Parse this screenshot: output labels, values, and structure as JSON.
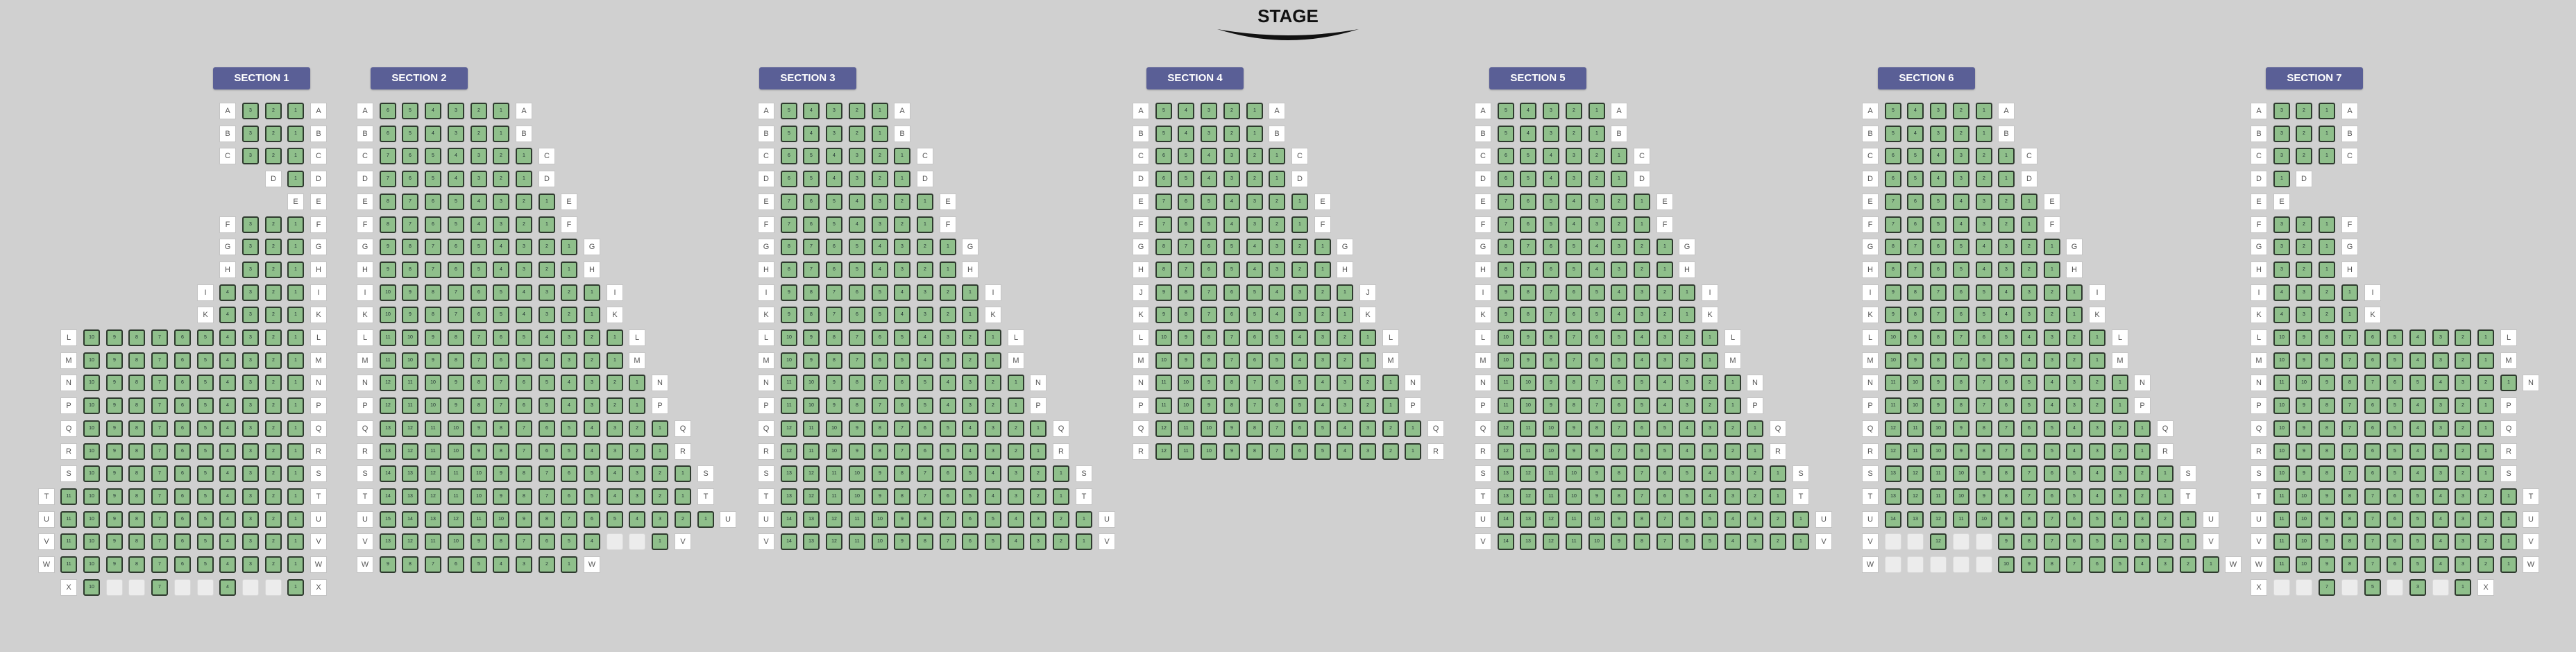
{
  "stage": {
    "title": "STAGE"
  },
  "colors": {
    "background": "#d0d0d0",
    "section_button": "#5a5f96",
    "seat_available": "#8fbf8b",
    "seat_border": "#2e3a2e",
    "seat_unavailable": "#ececec",
    "row_label_bg": "#ffffff"
  },
  "sections": [
    {
      "name": "SECTION 1",
      "rows": [
        {
          "label": "A",
          "seats": "3"
        },
        {
          "label": "B",
          "seats": "3"
        },
        {
          "label": "C",
          "seats": "3"
        },
        {
          "label": "D",
          "seats": "1"
        },
        {
          "label": "E",
          "seats": ""
        },
        {
          "label": "F",
          "seats": "3"
        },
        {
          "label": "G",
          "seats": "3"
        },
        {
          "label": "H",
          "seats": "3"
        },
        {
          "label": "I",
          "seats": "4"
        },
        {
          "label": "K",
          "seats": "4"
        },
        {
          "label": "L",
          "seats": "10"
        },
        {
          "label": "M",
          "seats": "10"
        },
        {
          "label": "N",
          "seats": "10"
        },
        {
          "label": "P",
          "seats": "10"
        },
        {
          "label": "Q",
          "seats": "10"
        },
        {
          "label": "R",
          "seats": "10"
        },
        {
          "label": "S",
          "seats": "10"
        },
        {
          "label": "T",
          "seats": "11"
        },
        {
          "label": "U",
          "seats": "11"
        },
        {
          "label": "V",
          "seats": "11"
        },
        {
          "label": "W",
          "seats": "11"
        },
        {
          "label": "X",
          "seats": "x1,0,0,1,0,0,1,0,0,1"
        }
      ]
    },
    {
      "name": "SECTION 2",
      "rows": [
        {
          "label": "A",
          "seats": "6"
        },
        {
          "label": "B",
          "seats": "6"
        },
        {
          "label": "C",
          "seats": "7"
        },
        {
          "label": "D",
          "seats": "7"
        },
        {
          "label": "E",
          "seats": "8"
        },
        {
          "label": "F",
          "seats": "8"
        },
        {
          "label": "G",
          "seats": "9"
        },
        {
          "label": "H",
          "seats": "9"
        },
        {
          "label": "I",
          "seats": "10"
        },
        {
          "label": "K",
          "seats": "10"
        },
        {
          "label": "L",
          "seats": "11"
        },
        {
          "label": "M",
          "seats": "11"
        },
        {
          "label": "N",
          "seats": "12"
        },
        {
          "label": "P",
          "seats": "12"
        },
        {
          "label": "Q",
          "seats": "13"
        },
        {
          "label": "R",
          "seats": "13"
        },
        {
          "label": "S",
          "seats": "14"
        },
        {
          "label": "T",
          "seats": "14"
        },
        {
          "label": "U",
          "seats": "15"
        },
        {
          "label": "V",
          "seats": "x1,1,1,1,1,1,1,1,1,1,0,0,1"
        },
        {
          "label": "W",
          "seats": "9"
        }
      ]
    },
    {
      "name": "SECTION 3",
      "rows": [
        {
          "label": "A",
          "seats": "5"
        },
        {
          "label": "B",
          "seats": "5"
        },
        {
          "label": "C",
          "seats": "6"
        },
        {
          "label": "D",
          "seats": "6"
        },
        {
          "label": "E",
          "seats": "7"
        },
        {
          "label": "F",
          "seats": "7"
        },
        {
          "label": "G",
          "seats": "8"
        },
        {
          "label": "H",
          "seats": "8"
        },
        {
          "label": "I",
          "seats": "9"
        },
        {
          "label": "K",
          "seats": "9"
        },
        {
          "label": "L",
          "seats": "10"
        },
        {
          "label": "M",
          "seats": "10"
        },
        {
          "label": "N",
          "seats": "11"
        },
        {
          "label": "P",
          "seats": "11"
        },
        {
          "label": "Q",
          "seats": "12"
        },
        {
          "label": "R",
          "seats": "12"
        },
        {
          "label": "S",
          "seats": "13"
        },
        {
          "label": "T",
          "seats": "13"
        },
        {
          "label": "U",
          "seats": "14"
        },
        {
          "label": "V",
          "seats": "14"
        }
      ]
    },
    {
      "name": "SECTION 4",
      "rows": [
        {
          "label": "A",
          "seats": "5"
        },
        {
          "label": "B",
          "seats": "5"
        },
        {
          "label": "C",
          "seats": "6"
        },
        {
          "label": "D",
          "seats": "6"
        },
        {
          "label": "E",
          "seats": "7"
        },
        {
          "label": "F",
          "seats": "7"
        },
        {
          "label": "G",
          "seats": "8"
        },
        {
          "label": "H",
          "seats": "8"
        },
        {
          "label": "J",
          "seats": "9"
        },
        {
          "label": "K",
          "seats": "9"
        },
        {
          "label": "L",
          "seats": "10"
        },
        {
          "label": "M",
          "seats": "10"
        },
        {
          "label": "N",
          "seats": "11"
        },
        {
          "label": "P",
          "seats": "11"
        },
        {
          "label": "Q",
          "seats": "12"
        },
        {
          "label": "R",
          "seats": "12"
        }
      ]
    },
    {
      "name": "SECTION 5",
      "rows": [
        {
          "label": "A",
          "seats": "5"
        },
        {
          "label": "B",
          "seats": "5"
        },
        {
          "label": "C",
          "seats": "6"
        },
        {
          "label": "D",
          "seats": "6"
        },
        {
          "label": "E",
          "seats": "7"
        },
        {
          "label": "F",
          "seats": "7"
        },
        {
          "label": "G",
          "seats": "8"
        },
        {
          "label": "H",
          "seats": "8"
        },
        {
          "label": "I",
          "seats": "9"
        },
        {
          "label": "K",
          "seats": "9"
        },
        {
          "label": "L",
          "seats": "10"
        },
        {
          "label": "M",
          "seats": "10"
        },
        {
          "label": "N",
          "seats": "11"
        },
        {
          "label": "P",
          "seats": "11"
        },
        {
          "label": "Q",
          "seats": "12"
        },
        {
          "label": "R",
          "seats": "12"
        },
        {
          "label": "S",
          "seats": "13"
        },
        {
          "label": "T",
          "seats": "13"
        },
        {
          "label": "U",
          "seats": "14"
        },
        {
          "label": "V",
          "seats": "14"
        }
      ]
    },
    {
      "name": "SECTION 6",
      "rows": [
        {
          "label": "A",
          "seats": "5"
        },
        {
          "label": "B",
          "seats": "5"
        },
        {
          "label": "C",
          "seats": "6"
        },
        {
          "label": "D",
          "seats": "6"
        },
        {
          "label": "E",
          "seats": "7"
        },
        {
          "label": "F",
          "seats": "7"
        },
        {
          "label": "G",
          "seats": "8"
        },
        {
          "label": "H",
          "seats": "8"
        },
        {
          "label": "I",
          "seats": "9"
        },
        {
          "label": "K",
          "seats": "9"
        },
        {
          "label": "L",
          "seats": "10"
        },
        {
          "label": "M",
          "seats": "10"
        },
        {
          "label": "N",
          "seats": "11"
        },
        {
          "label": "P",
          "seats": "11"
        },
        {
          "label": "Q",
          "seats": "12"
        },
        {
          "label": "R",
          "seats": "12"
        },
        {
          "label": "S",
          "seats": "13"
        },
        {
          "label": "T",
          "seats": "13"
        },
        {
          "label": "U",
          "seats": "14"
        },
        {
          "label": "V",
          "seats": "x0,0,1,0,0,1,1,1,1,1,1,1,1,1"
        },
        {
          "label": "W",
          "seats": "x0,0,0,0,0,1,1,1,1,1,1,1,1,1,1"
        }
      ]
    },
    {
      "name": "SECTION 7",
      "rows": [
        {
          "label": "A",
          "seats": "3"
        },
        {
          "label": "B",
          "seats": "3"
        },
        {
          "label": "C",
          "seats": "3"
        },
        {
          "label": "D",
          "seats": "1"
        },
        {
          "label": "E",
          "seats": ""
        },
        {
          "label": "F",
          "seats": "3"
        },
        {
          "label": "G",
          "seats": "3"
        },
        {
          "label": "H",
          "seats": "3"
        },
        {
          "label": "I",
          "seats": "4"
        },
        {
          "label": "K",
          "seats": "4"
        },
        {
          "label": "L",
          "seats": "10"
        },
        {
          "label": "M",
          "seats": "10"
        },
        {
          "label": "N",
          "seats": "11"
        },
        {
          "label": "P",
          "seats": "10"
        },
        {
          "label": "Q",
          "seats": "10"
        },
        {
          "label": "R",
          "seats": "10"
        },
        {
          "label": "S",
          "seats": "10"
        },
        {
          "label": "T",
          "seats": "11"
        },
        {
          "label": "U",
          "seats": "11"
        },
        {
          "label": "V",
          "seats": "11"
        },
        {
          "label": "W",
          "seats": "11"
        },
        {
          "label": "X",
          "seats": "x0,0,1,0,1,0,1,0,1"
        }
      ]
    }
  ]
}
